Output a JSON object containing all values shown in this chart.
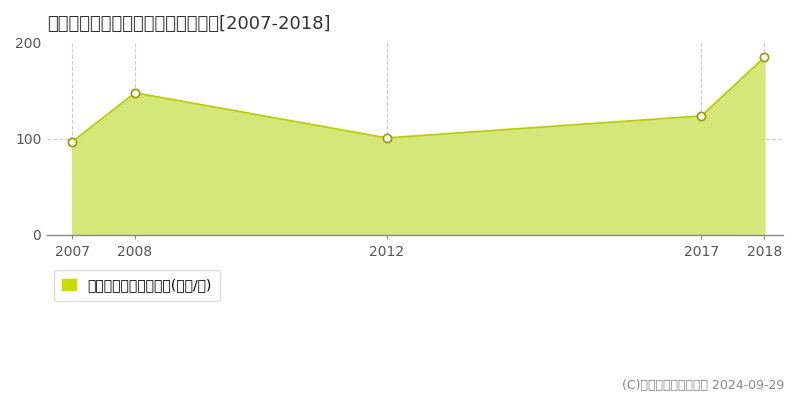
{
  "title": "静岡市葵区東草深町　住宅価格推移[2007-2018]",
  "x": [
    2007,
    2008,
    2012,
    2017,
    2018
  ],
  "y": [
    97,
    148,
    101,
    124,
    185
  ],
  "line_color": "#b8cc00",
  "fill_color": "#d4e87a",
  "marker_facecolor": "#ffffff",
  "marker_edgecolor": "#999900",
  "ylim": [
    0,
    200
  ],
  "yticks": [
    0,
    100,
    200
  ],
  "xlim_left": 2006.6,
  "xlim_right": 2018.3,
  "xticks": [
    2007,
    2008,
    2012,
    2017,
    2018
  ],
  "vgrid_color": "#cccccc",
  "hgrid_color": "#cccccc",
  "bg_color": "#ffffff",
  "plot_bg_color": "#ffffff",
  "legend_label": "住宅価格　平均嵪単価(万円/嵪)",
  "legend_square_color": "#c8dc00",
  "copyright_text": "(C)土地価格ドットコム 2024-09-29",
  "title_fontsize": 13,
  "tick_fontsize": 10,
  "legend_fontsize": 10,
  "copyright_fontsize": 9
}
